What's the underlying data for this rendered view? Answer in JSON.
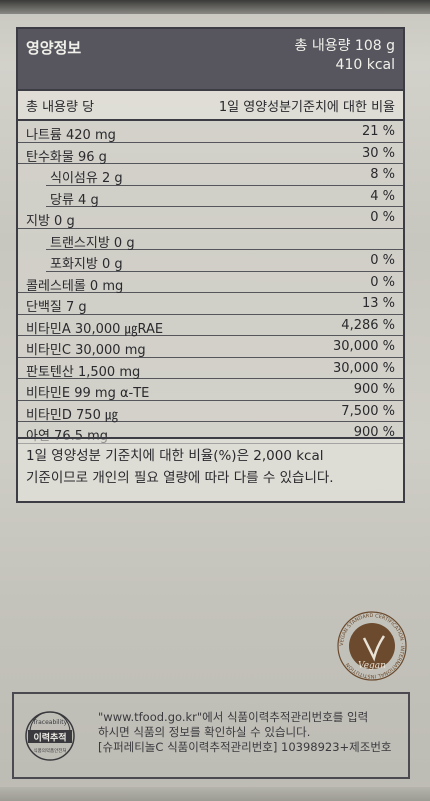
{
  "header": {
    "title": "영양정보",
    "total_amount": "총 내용량 108 g",
    "total_kcal": "410 kcal"
  },
  "subheader": {
    "left": "총 내용량 당",
    "right": "1일 영양성분기준치에 대한 비율"
  },
  "nutrients": [
    {
      "name": "나트륨 420 mg",
      "pct": "21 %",
      "indent": false
    },
    {
      "name": "탄수화물 96 g",
      "pct": "30 %",
      "indent": false
    },
    {
      "name": "식이섬유 2 g",
      "pct": "8 %",
      "indent": true
    },
    {
      "name": "당류 4 g",
      "pct": "4 %",
      "indent": true
    },
    {
      "name": "지방 0 g",
      "pct": "0 %",
      "indent": false
    },
    {
      "name": "트랜스지방 0 g",
      "pct": "",
      "indent": true
    },
    {
      "name": "포화지방 0 g",
      "pct": "0 %",
      "indent": true
    },
    {
      "name": "콜레스테롤 0 mg",
      "pct": "0 %",
      "indent": false
    },
    {
      "name": "단백질 7 g",
      "pct": "13 %",
      "indent": false
    },
    {
      "name": "비타민A 30,000 ㎍RAE",
      "pct": "4,286 %",
      "indent": false
    },
    {
      "name": "비타민C 30,000 mg",
      "pct": "30,000 %",
      "indent": false
    },
    {
      "name": "판토텐산 1,500 mg",
      "pct": "30,000 %",
      "indent": false
    },
    {
      "name": "비타민E 99 mg α-TE",
      "pct": "900 %",
      "indent": false
    },
    {
      "name": "비타민D 750 ㎍",
      "pct": "7,500 %",
      "indent": false
    },
    {
      "name": "아연 76.5 mg",
      "pct": "900 %",
      "indent": false
    }
  ],
  "footnote": {
    "line1": "1일 영양성분 기준치에 대한 비율(%)은 2,000 kcal",
    "line2": "기준이므로 개인의 필요 열량에 따라 다를 수 있습니다."
  },
  "vegan_logo": {
    "label": "Vegan",
    "ring_text": "VEGAN STANDARD CERTIFICATION · INTERNATIONAL INSTITUTION"
  },
  "traceability": {
    "logo_top": "Traceability",
    "logo_main": "이력추적",
    "logo_bottom": "식품의약품안전처",
    "line1": "\"www.tfood.go.kr\"에서 식품이력추적관리번호를 입력",
    "line2": "하시면 식품의 정보를 확인하실 수 있습니다.",
    "line3": "[슈퍼레티놀C 식품이력추적관리번호] 10398923+제조번호"
  },
  "colors": {
    "header_bg": "#57565f",
    "border": "#3c3c44",
    "vegan_brown": "#6b4a2e"
  }
}
